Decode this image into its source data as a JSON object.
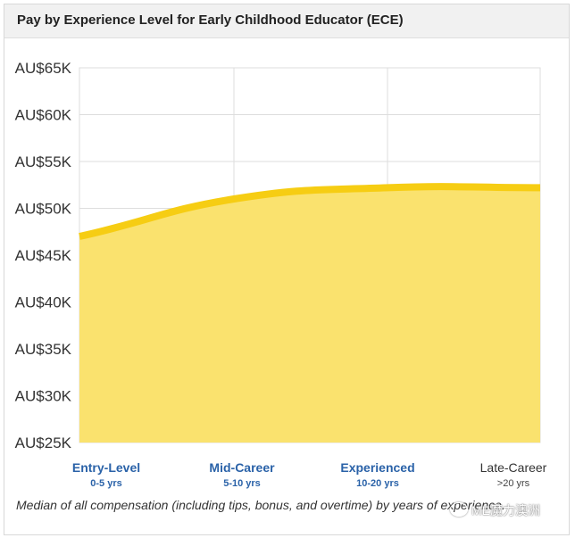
{
  "card": {
    "title": "Pay by Experience Level for Early Childhood Educator (ECE)"
  },
  "caption": "Median of all compensation (including tips, bonus, and overtime) by years of experience.",
  "watermark": {
    "text": "ME魔力澳洲",
    "icon": "wechat-icon"
  },
  "colors": {
    "line": "#f6cd13",
    "area": "#fae26e",
    "grid": "#dddddd",
    "label_blue": "#2a62a8"
  },
  "chart_data": {
    "type": "area",
    "categories": [
      "Entry-Level",
      "Mid-Career",
      "Experienced",
      "Late-Career"
    ],
    "category_sub": [
      "0-5 yrs",
      "5-10 yrs",
      "10-20 yrs",
      ">20 yrs"
    ],
    "highlighted": [
      true,
      true,
      true,
      false
    ],
    "y": [
      47,
      51,
      52.2,
      52.2
    ],
    "y_unit": "AU$ thousands",
    "ylim": [
      25,
      65
    ],
    "yticks": [
      65,
      60,
      55,
      50,
      45,
      40,
      35,
      30,
      25
    ],
    "ytick_labels": [
      "AU$65K",
      "AU$60K",
      "AU$55K",
      "AU$50K",
      "AU$45K",
      "AU$40K",
      "AU$35K",
      "AU$30K",
      "AU$25K"
    ],
    "grid": true,
    "legend": "none"
  }
}
